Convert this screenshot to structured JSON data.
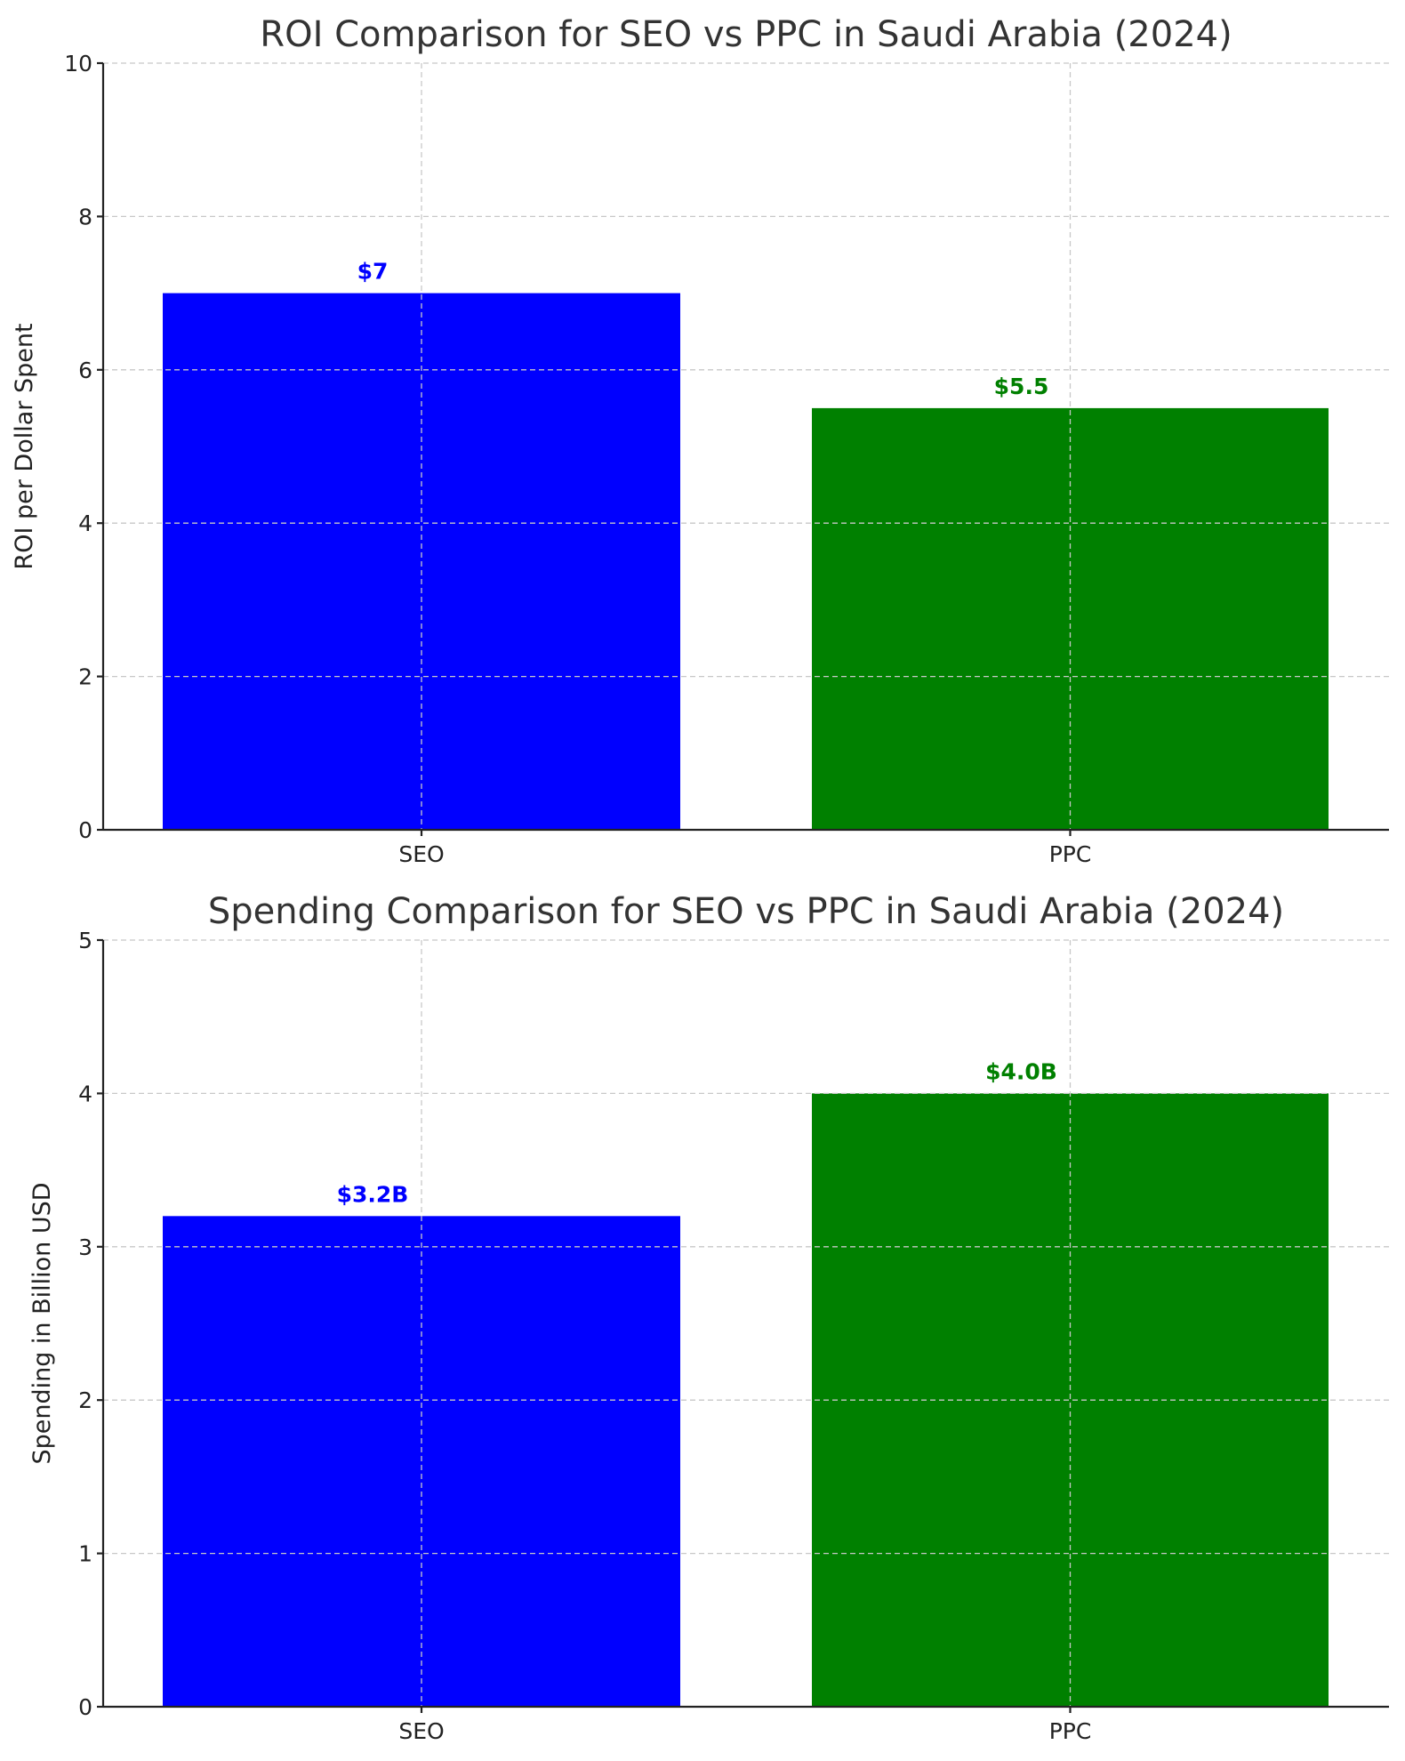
{
  "chart_data": [
    {
      "type": "bar",
      "title": "ROI Comparison for SEO vs PPC in Saudi Arabia (2024)",
      "xlabel": "",
      "ylabel": "ROI per Dollar Spent",
      "categories": [
        "SEO",
        "PPC"
      ],
      "values": [
        7,
        5.5
      ],
      "data_labels": [
        "$7",
        "$5.5"
      ],
      "colors": [
        "#0000ff",
        "#008000"
      ],
      "ylim": [
        0,
        10
      ],
      "yticks": [
        "0",
        "2",
        "4",
        "6",
        "8",
        "10"
      ],
      "grid": true
    },
    {
      "type": "bar",
      "title": "Spending Comparison for SEO vs PPC in Saudi Arabia (2024)",
      "xlabel": "",
      "ylabel": "Spending in Billion USD",
      "categories": [
        "SEO",
        "PPC"
      ],
      "values": [
        3.2,
        4.0
      ],
      "data_labels": [
        "$3.2B",
        "$4.0B"
      ],
      "colors": [
        "#0000ff",
        "#008000"
      ],
      "ylim": [
        0,
        5
      ],
      "yticks": [
        "0",
        "1",
        "2",
        "3",
        "4",
        "5"
      ],
      "grid": true
    }
  ]
}
